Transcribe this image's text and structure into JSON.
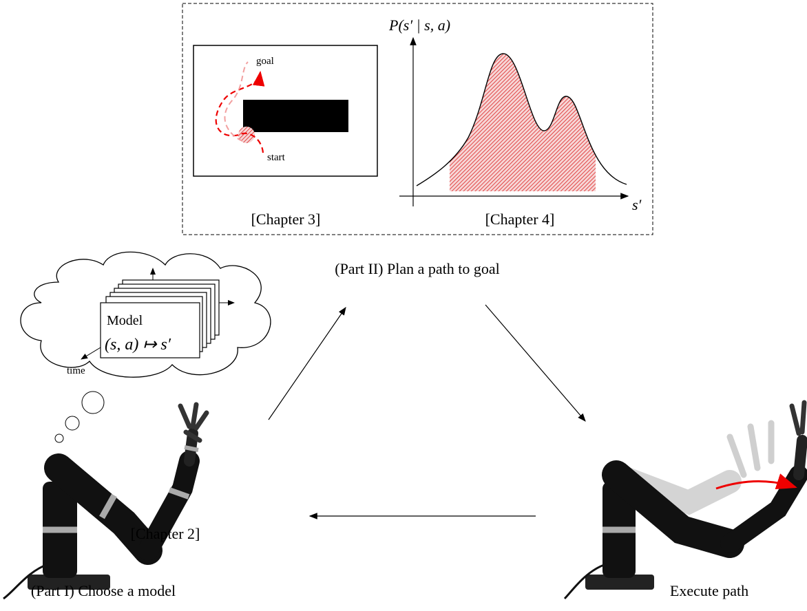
{
  "planning_box": {
    "axis_y_label": "P(s′ | s, a)",
    "axis_x_label": "s′",
    "goal_label": "goal",
    "start_label": "start",
    "chapter_left": "[Chapter 3]",
    "chapter_right": "[Chapter 4]"
  },
  "plan_caption": "(Part II) Plan a path to goal",
  "thought": {
    "model_title": "Model",
    "model_mapping": "(s, a) ↦ s′",
    "time_label": "time"
  },
  "model_chapter": "[Chapter 2]",
  "model_caption": "(Part I) Choose a model",
  "execute_caption": "Execute path"
}
